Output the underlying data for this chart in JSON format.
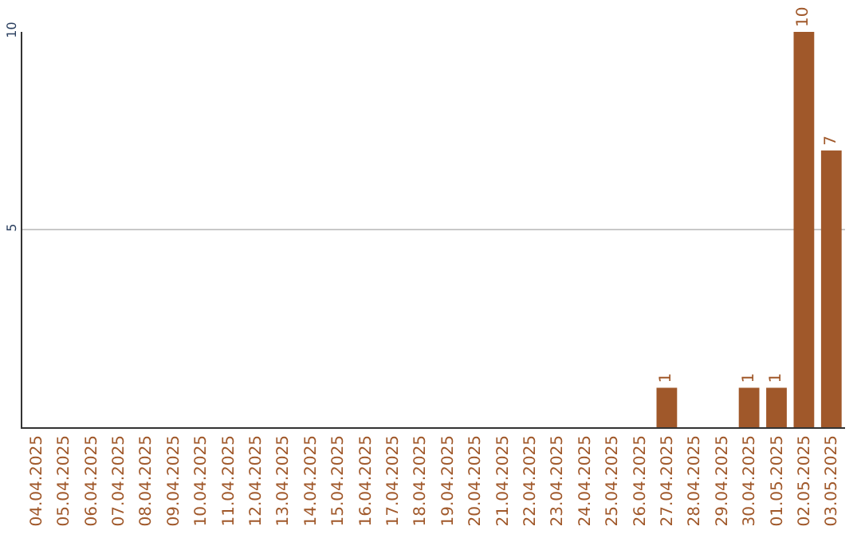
{
  "chart_data": {
    "type": "bar",
    "categories": [
      "04.04.2025",
      "05.04.2025",
      "06.04.2025",
      "07.04.2025",
      "08.04.2025",
      "09.04.2025",
      "10.04.2025",
      "11.04.2025",
      "12.04.2025",
      "13.04.2025",
      "14.04.2025",
      "15.04.2025",
      "16.04.2025",
      "17.04.2025",
      "18.04.2025",
      "19.04.2025",
      "20.04.2025",
      "21.04.2025",
      "22.04.2025",
      "23.04.2025",
      "24.04.2025",
      "25.04.2025",
      "26.04.2025",
      "27.04.2025",
      "28.04.2025",
      "29.04.2025",
      "30.04.2025",
      "01.05.2025",
      "02.05.2025",
      "03.05.2025"
    ],
    "values": [
      0,
      0,
      0,
      0,
      0,
      0,
      0,
      0,
      0,
      0,
      0,
      0,
      0,
      0,
      0,
      0,
      0,
      0,
      0,
      0,
      0,
      0,
      0,
      1,
      0,
      0,
      1,
      1,
      10,
      7
    ],
    "value_labels": [
      null,
      null,
      null,
      null,
      null,
      null,
      null,
      null,
      null,
      null,
      null,
      null,
      null,
      null,
      null,
      null,
      null,
      null,
      null,
      null,
      null,
      null,
      null,
      "1",
      null,
      null,
      "1",
      "1",
      "10",
      "7"
    ],
    "color": "#a0582a",
    "ylim": [
      0,
      10
    ],
    "yticks": [
      5,
      10
    ],
    "grid": "y",
    "legend": false
  }
}
